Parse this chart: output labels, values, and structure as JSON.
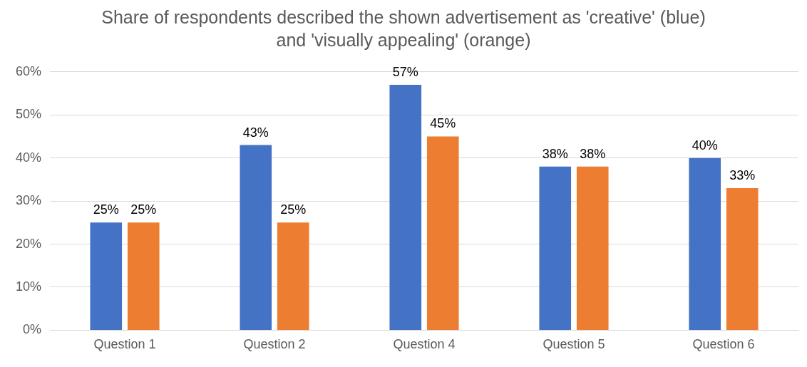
{
  "chart_data": {
    "type": "bar",
    "title": "Share of respondents described the shown advertisement as 'creative' (blue) and 'visually appealing' (orange)",
    "categories": [
      "Question 1",
      "Question 2",
      "Question 4",
      "Question 5",
      "Question 6"
    ],
    "series": [
      {
        "color": "#4472c4",
        "values": [
          25,
          43,
          57,
          38,
          40
        ],
        "value_labels": [
          "25%",
          "43%",
          "57%",
          "38%",
          "40%"
        ]
      },
      {
        "color": "#ed7d31",
        "values": [
          25,
          25,
          45,
          38,
          33
        ],
        "value_labels": [
          "25%",
          "25%",
          "45%",
          "38%",
          "33%"
        ]
      }
    ],
    "ylim": [
      0,
      60
    ],
    "yticks": [
      {
        "value": 0,
        "label": "0%"
      },
      {
        "value": 10,
        "label": "10%"
      },
      {
        "value": 20,
        "label": "20%"
      },
      {
        "value": 30,
        "label": "30%"
      },
      {
        "value": 40,
        "label": "40%"
      },
      {
        "value": 50,
        "label": "50%"
      },
      {
        "value": 60,
        "label": "60%"
      }
    ],
    "grid": "y",
    "legend": false
  }
}
